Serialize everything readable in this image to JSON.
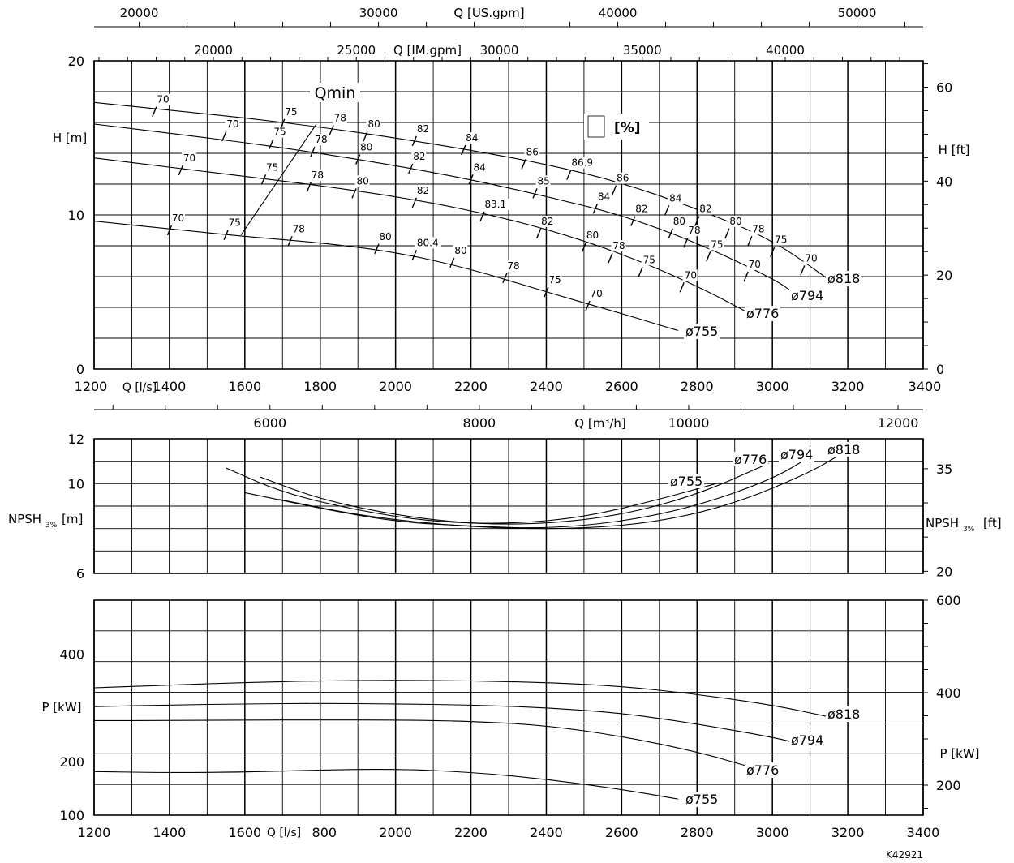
{
  "chart_data": [
    {
      "type": "line",
      "name_key": "head",
      "x_unit": "Q [l/s]",
      "xlim": [
        1200,
        3400
      ],
      "x_ticks": [
        1200,
        1400,
        1600,
        1800,
        2000,
        2200,
        2400,
        2600,
        2800,
        3000,
        3200,
        3400
      ],
      "ylabel": "H [m]",
      "ylim": [
        0,
        20
      ],
      "y_ticks": [
        0,
        10,
        20
      ],
      "y2label": "H [ft]",
      "y2_ticks": [
        0,
        20,
        40,
        60
      ],
      "top_axis_usgpm": {
        "label": "Q [US.gpm]",
        "ticks": [
          20000,
          30000,
          40000,
          50000
        ]
      },
      "top_axis_imgpm": {
        "label": "Q [IM.gpm]",
        "ticks": [
          20000,
          25000,
          30000,
          35000,
          40000
        ]
      },
      "qmin_label": "Qmin",
      "qmin_line": {
        "x": [
          1590,
          1790
        ],
        "y": [
          8.7,
          15.9
        ]
      },
      "efficiency_legend": "[%]",
      "series": [
        {
          "name": "ø818",
          "x": [
            1200,
            1400,
            1600,
            1800,
            2000,
            2200,
            2400,
            2600,
            2800,
            3000,
            3150
          ],
          "y": [
            17.3,
            16.8,
            16.3,
            15.7,
            15.0,
            14.2,
            13.3,
            12.1,
            10.4,
            8.4,
            5.8
          ]
        },
        {
          "name": "ø794",
          "x": [
            1200,
            1400,
            1600,
            1800,
            2000,
            2200,
            2400,
            2600,
            2800,
            3000,
            3060
          ],
          "y": [
            15.9,
            15.3,
            14.7,
            14.0,
            13.2,
            12.3,
            11.2,
            10.0,
            8.2,
            5.9,
            4.9
          ]
        },
        {
          "name": "ø776",
          "x": [
            1200,
            1400,
            1600,
            1800,
            2000,
            2200,
            2400,
            2600,
            2800,
            2940
          ],
          "y": [
            13.7,
            13.1,
            12.5,
            11.9,
            11.2,
            10.3,
            9.1,
            7.5,
            5.4,
            3.6
          ]
        },
        {
          "name": "ø755",
          "x": [
            1200,
            1400,
            1600,
            1800,
            2000,
            2200,
            2400,
            2600,
            2750
          ],
          "y": [
            9.6,
            9.1,
            8.6,
            8.2,
            7.6,
            6.5,
            5.0,
            3.6,
            2.5
          ]
        }
      ],
      "efficiency_marks": [
        {
          "x": 1430,
          "y": 12.9,
          "label": "70"
        },
        {
          "x": 1650,
          "y": 12.3,
          "label": "75"
        },
        {
          "x": 1770,
          "y": 11.8,
          "label": "78"
        },
        {
          "x": 1890,
          "y": 11.4,
          "label": "80"
        },
        {
          "x": 2050,
          "y": 10.8,
          "label": "82"
        },
        {
          "x": 2230,
          "y": 9.9,
          "label": "83.1"
        },
        {
          "x": 2380,
          "y": 8.8,
          "label": "82"
        },
        {
          "x": 2500,
          "y": 7.9,
          "label": "80"
        },
        {
          "x": 2570,
          "y": 7.2,
          "label": "78"
        },
        {
          "x": 2650,
          "y": 6.3,
          "label": "75"
        },
        {
          "x": 2760,
          "y": 5.3,
          "label": "70"
        },
        {
          "x": 1545,
          "y": 15.1,
          "label": "70"
        },
        {
          "x": 1670,
          "y": 14.6,
          "label": "75"
        },
        {
          "x": 1780,
          "y": 14.1,
          "label": "78"
        },
        {
          "x": 1900,
          "y": 13.6,
          "label": "80"
        },
        {
          "x": 2040,
          "y": 13.0,
          "label": "82"
        },
        {
          "x": 2200,
          "y": 12.3,
          "label": "84"
        },
        {
          "x": 2370,
          "y": 11.4,
          "label": "85"
        },
        {
          "x": 2530,
          "y": 10.4,
          "label": "84"
        },
        {
          "x": 2630,
          "y": 9.6,
          "label": "82"
        },
        {
          "x": 2730,
          "y": 8.8,
          "label": "80"
        },
        {
          "x": 2770,
          "y": 8.2,
          "label": "78"
        },
        {
          "x": 2830,
          "y": 7.3,
          "label": "75"
        },
        {
          "x": 2930,
          "y": 6.0,
          "label": "70"
        },
        {
          "x": 1360,
          "y": 16.7,
          "label": "70"
        },
        {
          "x": 1700,
          "y": 15.9,
          "label": "75"
        },
        {
          "x": 1830,
          "y": 15.5,
          "label": "78"
        },
        {
          "x": 1920,
          "y": 15.1,
          "label": "80"
        },
        {
          "x": 2050,
          "y": 14.8,
          "label": "82"
        },
        {
          "x": 2180,
          "y": 14.2,
          "label": "84"
        },
        {
          "x": 2340,
          "y": 13.3,
          "label": "86"
        },
        {
          "x": 2460,
          "y": 12.6,
          "label": "86.9"
        },
        {
          "x": 2580,
          "y": 11.6,
          "label": "86"
        },
        {
          "x": 2720,
          "y": 10.3,
          "label": "84"
        },
        {
          "x": 2800,
          "y": 9.6,
          "label": "82"
        },
        {
          "x": 2880,
          "y": 8.8,
          "label": "80"
        },
        {
          "x": 2940,
          "y": 8.3,
          "label": "78"
        },
        {
          "x": 3000,
          "y": 7.6,
          "label": "75"
        },
        {
          "x": 3080,
          "y": 6.4,
          "label": "70"
        },
        {
          "x": 1400,
          "y": 9.0,
          "label": "70"
        },
        {
          "x": 1550,
          "y": 8.7,
          "label": "75"
        },
        {
          "x": 1720,
          "y": 8.3,
          "label": "78"
        },
        {
          "x": 1950,
          "y": 7.8,
          "label": "80"
        },
        {
          "x": 2050,
          "y": 7.4,
          "label": "80.4"
        },
        {
          "x": 2150,
          "y": 6.9,
          "label": "80"
        },
        {
          "x": 2290,
          "y": 5.9,
          "label": "78"
        },
        {
          "x": 2400,
          "y": 5.0,
          "label": "75"
        },
        {
          "x": 2510,
          "y": 4.1,
          "label": "70"
        }
      ]
    },
    {
      "type": "line",
      "name_key": "npsh",
      "x_unit": "Q [m³/h]",
      "x_ticks_m3h": [
        6000,
        8000,
        10000,
        12000
      ],
      "xlim": [
        1200,
        3400
      ],
      "ylabel": "NPSH3% [m]",
      "ylabel_main": "NPSH",
      "ylabel_sub": "3%",
      "ylabel_unit": "[m]",
      "ylim": [
        6,
        12
      ],
      "y_ticks": [
        6,
        10,
        12
      ],
      "y2label_main": "NPSH",
      "y2label_sub": "3%",
      "y2label_unit": "[ft]",
      "y2_ticks": [
        20,
        35
      ],
      "y2_tick_labels": [
        "20",
        "35"
      ],
      "series": [
        {
          "name": "ø755",
          "x": [
            1550,
            1700,
            1900,
            2100,
            2300,
            2500,
            2700,
            2850
          ],
          "y": [
            10.7,
            9.6,
            8.8,
            8.3,
            8.2,
            8.5,
            9.3,
            10.0
          ]
        },
        {
          "name": "ø776",
          "x": [
            1640,
            1800,
            2000,
            2200,
            2400,
            2600,
            2800,
            2990
          ],
          "y": [
            10.3,
            9.3,
            8.6,
            8.2,
            8.2,
            8.6,
            9.5,
            10.9
          ]
        },
        {
          "name": "ø794",
          "x": [
            1600,
            1800,
            2000,
            2200,
            2400,
            2600,
            2800,
            3000,
            3100
          ],
          "y": [
            9.6,
            8.9,
            8.3,
            8.1,
            8.0,
            8.3,
            9.0,
            10.2,
            11.2
          ]
        },
        {
          "name": "ø818",
          "x": [
            1690,
            1900,
            2100,
            2300,
            2500,
            2700,
            2900,
            3100,
            3180
          ],
          "y": [
            9.3,
            8.6,
            8.2,
            8.0,
            8.0,
            8.3,
            9.1,
            10.5,
            11.3
          ]
        }
      ]
    },
    {
      "type": "line",
      "name_key": "power",
      "x_unit": "Q [l/s]",
      "xlim": [
        1200,
        3400
      ],
      "x_ticks": [
        1200,
        1400,
        1600,
        1800,
        2000,
        2200,
        2400,
        2600,
        2800,
        3000,
        3200,
        3400
      ],
      "ylabel": "P [kW]",
      "ylim": [
        100,
        500
      ],
      "y_ticks": [
        100,
        200,
        400
      ],
      "y2label": "P [kW]",
      "y2_ticks": [
        200,
        400,
        600
      ],
      "series": [
        {
          "name": "ø818",
          "x": [
            1200,
            1400,
            1600,
            1800,
            2000,
            2200,
            2400,
            2600,
            2800,
            3000,
            3150
          ],
          "y": [
            337,
            342,
            347,
            350,
            351,
            350,
            347,
            340,
            325,
            305,
            283
          ]
        },
        {
          "name": "ø794",
          "x": [
            1200,
            1400,
            1600,
            1800,
            2000,
            2200,
            2400,
            2600,
            2800,
            3000,
            3060
          ],
          "y": [
            302,
            305,
            307,
            308,
            307,
            305,
            300,
            290,
            270,
            245,
            235
          ]
        },
        {
          "name": "ø776",
          "x": [
            1200,
            1400,
            1600,
            1800,
            2000,
            2200,
            2400,
            2600,
            2800,
            2940
          ],
          "y": [
            276,
            276,
            277,
            277,
            277,
            275,
            267,
            247,
            218,
            190
          ]
        },
        {
          "name": "ø755",
          "x": [
            1200,
            1400,
            1600,
            1800,
            2000,
            2200,
            2400,
            2600,
            2750
          ],
          "y": [
            181,
            179,
            180,
            184,
            186,
            180,
            167,
            148,
            130
          ]
        }
      ]
    }
  ],
  "footer_code": "K42921"
}
